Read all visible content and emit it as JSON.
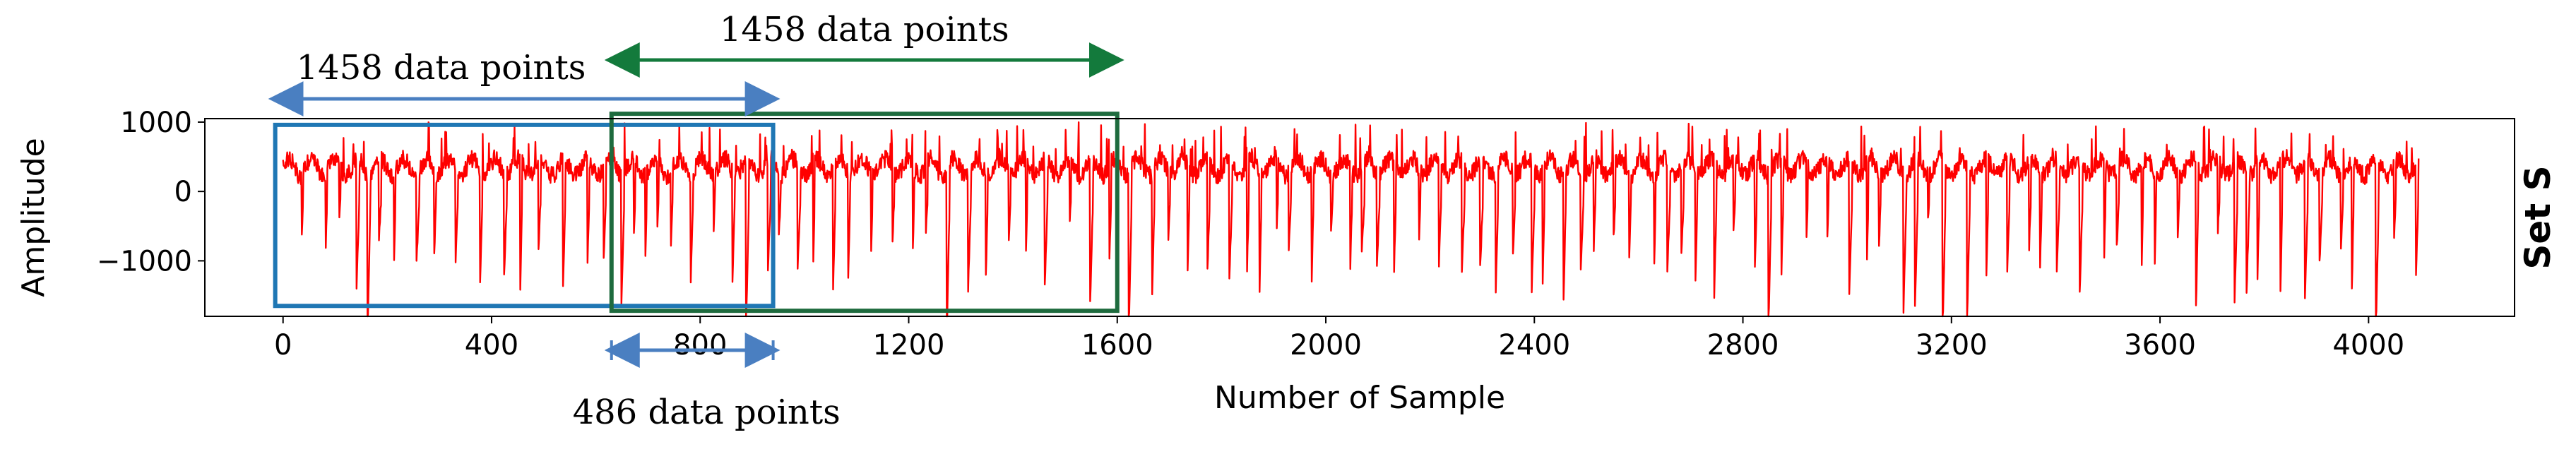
{
  "chart_data": {
    "type": "line",
    "xlabel": "Number of Sample",
    "ylabel": "Amplitude",
    "side_title": "Set S",
    "xlim": [
      -150,
      4280
    ],
    "ylim": [
      -1800,
      1050
    ],
    "xticks": [
      0,
      400,
      800,
      1200,
      1600,
      2000,
      2400,
      2800,
      3200,
      3600,
      4000
    ],
    "yticks": [
      1000,
      0,
      -1000
    ],
    "ytick_labels": [
      "1000",
      "0",
      "−1000"
    ],
    "series": [
      {
        "color": "#ff0000",
        "n_samples": 4097,
        "baseline": 350,
        "spike_min": -1800,
        "peak_max": 1000
      }
    ],
    "windows": [
      {
        "x": [
          -15,
          940
        ],
        "y": [
          -1650,
          960
        ],
        "color": "#1f77b4"
      },
      {
        "x": [
          630,
          1600
        ],
        "y": [
          -1720,
          1120
        ],
        "color": "#1e6b3e"
      }
    ],
    "annotations": [
      {
        "text": "1458 data points",
        "x_from": -15,
        "x_to": 940,
        "color": "#4a7fc1",
        "position": "above-left"
      },
      {
        "text": "1458 data points",
        "x_from": 630,
        "x_to": 1600,
        "color": "#137a3c",
        "position": "top"
      },
      {
        "text": "486 data points",
        "x_from": 630,
        "x_to": 940,
        "color": "#4a7fc1",
        "position": "below"
      }
    ]
  }
}
